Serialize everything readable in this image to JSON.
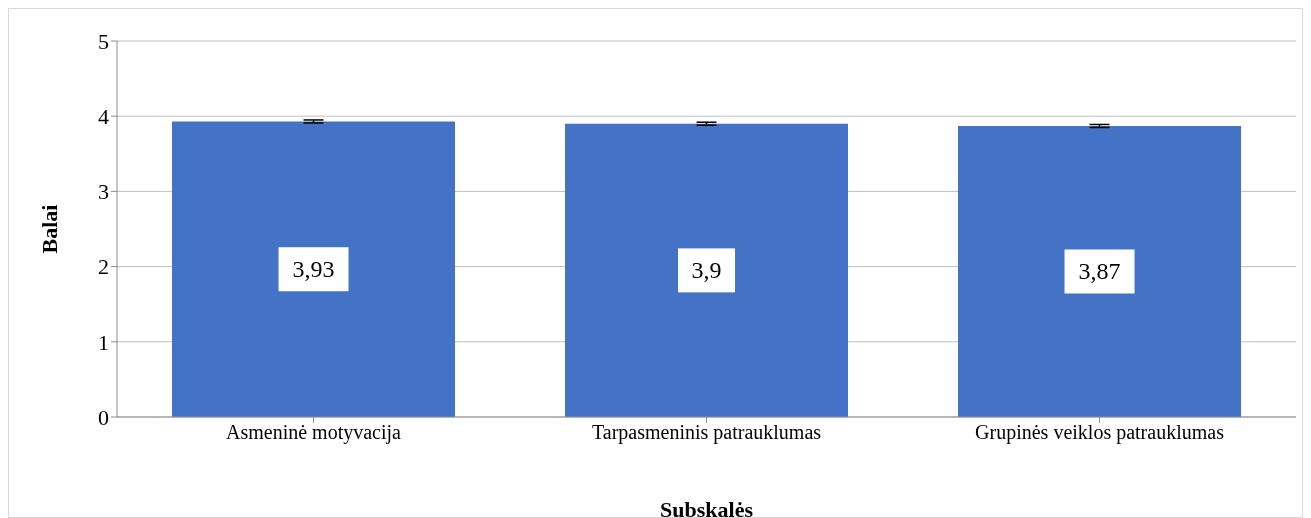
{
  "chart_data": {
    "type": "bar",
    "xlabel": "Subskalės",
    "ylabel": "Balai",
    "categories": [
      "Asmeninė motyvacija",
      "Tarpasmeninis patrauklumas",
      "Grupinės veiklos patrauklumas"
    ],
    "values": [
      3.93,
      3.9,
      3.87
    ],
    "errors": [
      0.02,
      0.02,
      0.02
    ],
    "value_labels": [
      "3,93",
      "3,9",
      "3,87"
    ],
    "color": "#4472c4",
    "ylim": [
      0,
      5
    ],
    "yticks": [
      0,
      1,
      2,
      3,
      4,
      5
    ],
    "grid": "y",
    "legend": false
  }
}
